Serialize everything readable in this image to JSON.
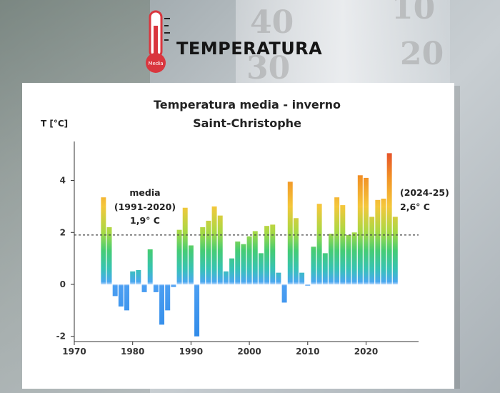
{
  "header": {
    "title": "TEMPERATURA",
    "icon_label": "Media",
    "icon_name": "thermometer-icon"
  },
  "background_numbers": [
    "40",
    "30",
    "20",
    "10"
  ],
  "colors": {
    "scale_red": "#d9363e",
    "bar_hot": "#ee7b22",
    "bar_warm": "#86d44a",
    "bar_cold": "#3f98ec"
  },
  "chart_data": {
    "type": "bar",
    "title": "Temperatura media - inverno",
    "subtitle": "Saint-Christophe",
    "ylabel": "T [°C]",
    "xlabel": "",
    "x": [
      1975,
      1976,
      1977,
      1978,
      1979,
      1980,
      1981,
      1982,
      1983,
      1984,
      1985,
      1986,
      1987,
      1988,
      1989,
      1990,
      1991,
      1992,
      1993,
      1994,
      1995,
      1996,
      1997,
      1998,
      1999,
      2000,
      2001,
      2002,
      2003,
      2004,
      2005,
      2006,
      2007,
      2008,
      2009,
      2010,
      2011,
      2012,
      2013,
      2014,
      2015,
      2016,
      2017,
      2018,
      2019,
      2020,
      2021,
      2022,
      2023,
      2024,
      2025
    ],
    "values": [
      3.35,
      2.2,
      -0.45,
      -0.85,
      -1.0,
      0.5,
      0.55,
      -0.3,
      1.35,
      -0.3,
      -1.55,
      -1.0,
      -0.1,
      2.1,
      2.95,
      1.5,
      -2.0,
      2.2,
      2.45,
      3.0,
      2.65,
      0.5,
      1.0,
      1.65,
      1.55,
      1.85,
      2.05,
      1.2,
      2.25,
      2.3,
      0.45,
      -0.7,
      3.95,
      2.55,
      0.45,
      -0.05,
      1.45,
      3.1,
      1.2,
      1.95,
      3.35,
      3.05,
      1.9,
      2.0,
      4.2,
      4.1,
      2.6,
      3.25,
      3.3,
      5.05,
      2.6
    ],
    "xticks": [
      1970,
      1980,
      1990,
      2000,
      2010,
      2020
    ],
    "xlim": [
      1970,
      2029
    ],
    "yticks": [
      -2,
      0,
      2,
      4
    ],
    "ylim": [
      -2.2,
      5.5
    ],
    "reference_line": {
      "value": 1.9,
      "style": "dashed"
    },
    "annotations": {
      "mean": [
        "media",
        "(1991-2020)",
        "1,9° C"
      ],
      "last": [
        "(2024-25)",
        "2,6° C"
      ]
    },
    "grid": false,
    "legend": "none"
  }
}
